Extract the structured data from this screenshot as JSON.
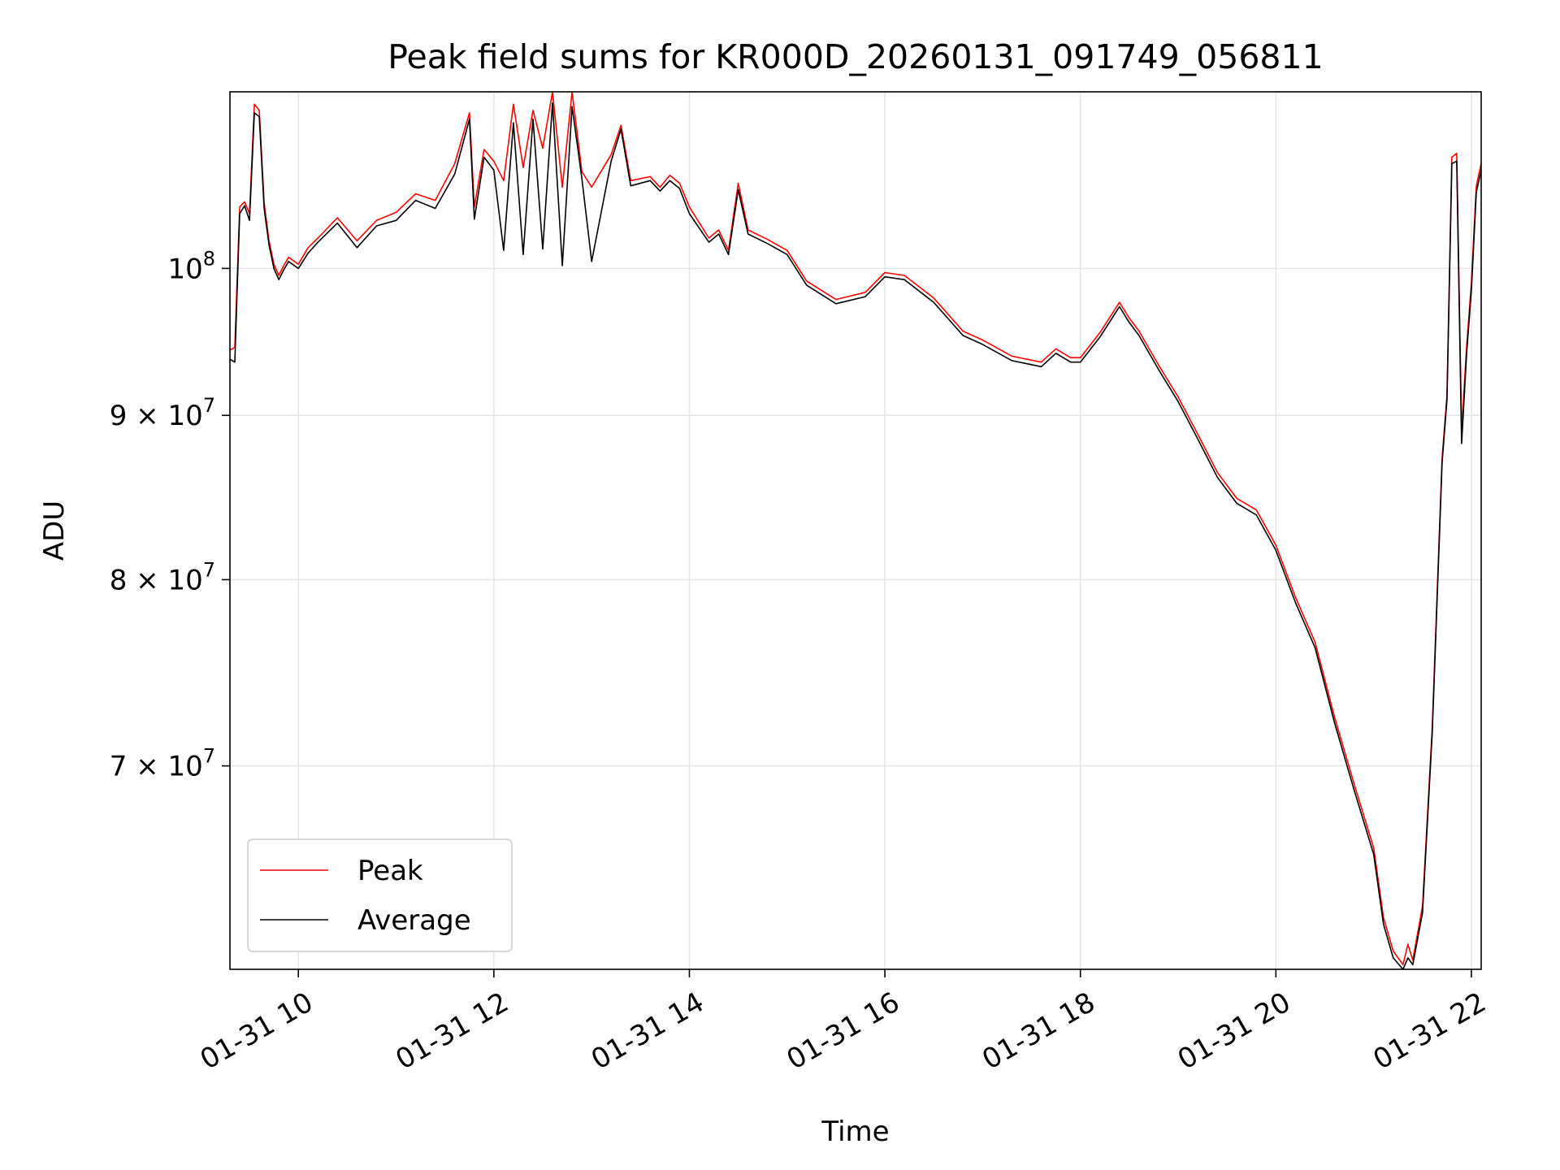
{
  "chart_data": {
    "type": "line",
    "title": "Peak field sums for KR000D_20260131_091749_056811",
    "xlabel": "Time",
    "ylabel": "ADU",
    "x_unit": "hours since 01-31 00:00",
    "xlim": [
      9.3,
      22.1
    ],
    "ylim": [
      60500000,
      113500000
    ],
    "y_scale": "log",
    "grid": true,
    "legend_position": "lower-left",
    "x_ticks": [
      {
        "value": 10,
        "label": "01-31 10"
      },
      {
        "value": 12,
        "label": "01-31 12"
      },
      {
        "value": 14,
        "label": "01-31 14"
      },
      {
        "value": 16,
        "label": "01-31 16"
      },
      {
        "value": 18,
        "label": "01-31 18"
      },
      {
        "value": 20,
        "label": "01-31 20"
      },
      {
        "value": 22,
        "label": "01-31 22"
      }
    ],
    "y_ticks": [
      {
        "value": 100000000,
        "base": "10",
        "exp": "8",
        "label": "10^8"
      },
      {
        "value": 90000000,
        "base": "9 × 10",
        "exp": "7",
        "label": "9 × 10^7"
      },
      {
        "value": 80000000,
        "base": "8 × 10",
        "exp": "7",
        "label": "8 × 10^7"
      },
      {
        "value": 70000000,
        "base": "7 × 10",
        "exp": "7",
        "label": "7 × 10^7"
      }
    ],
    "series": [
      {
        "name": "Peak",
        "color": "#ff0000",
        "x": [
          9.3,
          9.35,
          9.4,
          9.45,
          9.5,
          9.55,
          9.6,
          9.65,
          9.7,
          9.75,
          9.8,
          9.85,
          9.9,
          10.0,
          10.1,
          10.2,
          10.4,
          10.6,
          10.8,
          11.0,
          11.2,
          11.4,
          11.6,
          11.75,
          11.8,
          11.9,
          12.0,
          12.1,
          12.2,
          12.3,
          12.4,
          12.5,
          12.6,
          12.7,
          12.8,
          12.9,
          13.0,
          13.2,
          13.3,
          13.4,
          13.6,
          13.7,
          13.8,
          13.9,
          14.0,
          14.2,
          14.3,
          14.4,
          14.5,
          14.6,
          14.8,
          15.0,
          15.2,
          15.5,
          15.8,
          16.0,
          16.2,
          16.5,
          16.8,
          17.0,
          17.3,
          17.6,
          17.75,
          17.9,
          18.0,
          18.2,
          18.4,
          18.5,
          18.6,
          18.8,
          19.0,
          19.2,
          19.4,
          19.6,
          19.8,
          20.0,
          20.2,
          20.4,
          20.6,
          20.8,
          21.0,
          21.1,
          21.2,
          21.3,
          21.35,
          21.4,
          21.5,
          21.6,
          21.7,
          21.75,
          21.8,
          21.85,
          21.9,
          21.95,
          22.0,
          22.05,
          22.1
        ],
        "y": [
          94300000,
          94500000,
          104500000,
          104900000,
          104000000,
          112500000,
          112000000,
          104800000,
          102000000,
          100300000,
          99500000,
          100200000,
          100800000,
          100300000,
          101500000,
          102200000,
          103700000,
          102000000,
          103500000,
          104100000,
          105500000,
          105000000,
          107800000,
          111800000,
          104500000,
          108900000,
          108000000,
          106500000,
          112500000,
          107500000,
          112000000,
          109000000,
          113500000,
          106000000,
          113500000,
          107200000,
          106000000,
          108500000,
          110800000,
          106500000,
          106800000,
          106000000,
          106900000,
          106300000,
          104500000,
          102200000,
          102800000,
          101300000,
          106300000,
          102800000,
          102100000,
          101300000,
          99100000,
          97800000,
          98300000,
          99700000,
          99500000,
          97900000,
          95600000,
          95000000,
          93900000,
          93500000,
          94400000,
          93800000,
          93800000,
          95500000,
          97600000,
          96500000,
          95600000,
          93300000,
          91200000,
          88800000,
          86400000,
          84800000,
          84100000,
          82000000,
          79000000,
          76500000,
          72500000,
          69100000,
          66000000,
          62800000,
          61300000,
          60700000,
          61600000,
          60900000,
          63300000,
          72000000,
          87300000,
          91300000,
          108300000,
          108600000,
          89000000,
          94500000,
          99000000,
          106100000,
          107800000
        ]
      },
      {
        "name": "Average",
        "color": "#000000",
        "x": [
          9.3,
          9.35,
          9.4,
          9.45,
          9.5,
          9.55,
          9.6,
          9.65,
          9.7,
          9.75,
          9.8,
          9.85,
          9.9,
          10.0,
          10.1,
          10.2,
          10.4,
          10.6,
          10.8,
          11.0,
          11.2,
          11.4,
          11.6,
          11.75,
          11.8,
          11.9,
          12.0,
          12.1,
          12.2,
          12.3,
          12.4,
          12.5,
          12.6,
          12.7,
          12.8,
          12.9,
          13.0,
          13.2,
          13.3,
          13.4,
          13.6,
          13.7,
          13.8,
          13.9,
          14.0,
          14.2,
          14.3,
          14.4,
          14.5,
          14.6,
          14.8,
          15.0,
          15.2,
          15.5,
          15.8,
          16.0,
          16.2,
          16.5,
          16.8,
          17.0,
          17.3,
          17.6,
          17.75,
          17.9,
          18.0,
          18.2,
          18.4,
          18.5,
          18.6,
          18.8,
          19.0,
          19.2,
          19.4,
          19.6,
          19.8,
          20.0,
          20.2,
          20.4,
          20.6,
          20.8,
          21.0,
          21.1,
          21.2,
          21.3,
          21.35,
          21.4,
          21.5,
          21.6,
          21.7,
          21.75,
          21.8,
          21.85,
          21.9,
          21.95,
          22.0,
          22.05,
          22.1
        ],
        "y": [
          93700000,
          93500000,
          104000000,
          104600000,
          103500000,
          111800000,
          111500000,
          104400000,
          101700000,
          100000000,
          99200000,
          99900000,
          100500000,
          100000000,
          101100000,
          101900000,
          103300000,
          101500000,
          103100000,
          103500000,
          105000000,
          104400000,
          107000000,
          111300000,
          103600000,
          108300000,
          107300000,
          101300000,
          111000000,
          101000000,
          111300000,
          101400000,
          112600000,
          100200000,
          112300000,
          106700000,
          100500000,
          108000000,
          110500000,
          106100000,
          106500000,
          105700000,
          106500000,
          105900000,
          104000000,
          101900000,
          102500000,
          101000000,
          105800000,
          102500000,
          101800000,
          101000000,
          98800000,
          97500000,
          98000000,
          99400000,
          99200000,
          97600000,
          95300000,
          94700000,
          93600000,
          93200000,
          94100000,
          93500000,
          93500000,
          95200000,
          97300000,
          96200000,
          95300000,
          93000000,
          90900000,
          88500000,
          86100000,
          84500000,
          83800000,
          81700000,
          78700000,
          76200000,
          72200000,
          68800000,
          65700000,
          62500000,
          61000000,
          60500000,
          61000000,
          60700000,
          63000000,
          71700000,
          87000000,
          91000000,
          107800000,
          108000000,
          88200000,
          94000000,
          98500000,
          105600000,
          107300000
        ]
      }
    ]
  }
}
